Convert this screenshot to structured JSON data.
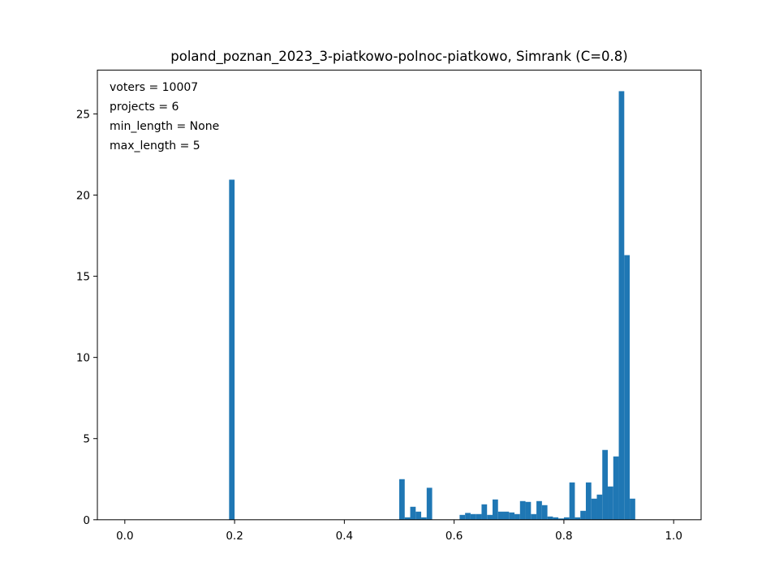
{
  "chart_data": {
    "type": "bar",
    "title": "poland_poznan_2023_3-piatkowo-polnoc-piatkowo, Simrank (C=0.8)",
    "xlabel": "",
    "ylabel": "",
    "xlim": [
      -0.05,
      1.05
    ],
    "ylim": [
      0,
      27.7
    ],
    "grid": false,
    "legend": "none",
    "bar_color": "#1f77b4",
    "bin_width": 0.01,
    "x_ticks": [
      0.0,
      0.2,
      0.4,
      0.6,
      0.8,
      1.0
    ],
    "x_tick_labels": [
      "0.0",
      "0.2",
      "0.4",
      "0.6",
      "0.8",
      "1.0"
    ],
    "y_ticks": [
      0,
      5,
      10,
      15,
      20,
      25
    ],
    "y_tick_labels": [
      "0",
      "5",
      "10",
      "15",
      "20",
      "25"
    ],
    "annotations": [
      "voters = 10007",
      "projects = 6",
      "min_length = None",
      "max_length = 5"
    ],
    "bins": [
      {
        "x": 0.19,
        "value": 20.95
      },
      {
        "x": 0.5,
        "value": 2.5
      },
      {
        "x": 0.51,
        "value": 0.15
      },
      {
        "x": 0.52,
        "value": 0.8
      },
      {
        "x": 0.53,
        "value": 0.5
      },
      {
        "x": 0.54,
        "value": 0.15
      },
      {
        "x": 0.55,
        "value": 1.97
      },
      {
        "x": 0.61,
        "value": 0.3
      },
      {
        "x": 0.62,
        "value": 0.42
      },
      {
        "x": 0.63,
        "value": 0.35
      },
      {
        "x": 0.64,
        "value": 0.35
      },
      {
        "x": 0.65,
        "value": 0.95
      },
      {
        "x": 0.66,
        "value": 0.3
      },
      {
        "x": 0.67,
        "value": 1.25
      },
      {
        "x": 0.68,
        "value": 0.5
      },
      {
        "x": 0.69,
        "value": 0.5
      },
      {
        "x": 0.7,
        "value": 0.45
      },
      {
        "x": 0.71,
        "value": 0.35
      },
      {
        "x": 0.72,
        "value": 1.15
      },
      {
        "x": 0.73,
        "value": 1.1
      },
      {
        "x": 0.74,
        "value": 0.35
      },
      {
        "x": 0.75,
        "value": 1.15
      },
      {
        "x": 0.76,
        "value": 0.9
      },
      {
        "x": 0.77,
        "value": 0.2
      },
      {
        "x": 0.78,
        "value": 0.15
      },
      {
        "x": 0.79,
        "value": 0.08
      },
      {
        "x": 0.8,
        "value": 0.15
      },
      {
        "x": 0.81,
        "value": 2.3
      },
      {
        "x": 0.82,
        "value": 0.15
      },
      {
        "x": 0.83,
        "value": 0.55
      },
      {
        "x": 0.84,
        "value": 2.3
      },
      {
        "x": 0.85,
        "value": 1.3
      },
      {
        "x": 0.86,
        "value": 1.55
      },
      {
        "x": 0.87,
        "value": 4.3
      },
      {
        "x": 0.88,
        "value": 2.05
      },
      {
        "x": 0.89,
        "value": 3.9
      },
      {
        "x": 0.9,
        "value": 26.4
      },
      {
        "x": 0.91,
        "value": 16.3
      },
      {
        "x": 0.92,
        "value": 1.3
      }
    ]
  }
}
